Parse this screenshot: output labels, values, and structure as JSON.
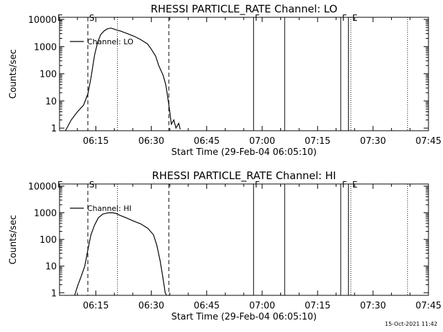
{
  "chart_data": [
    {
      "type": "line",
      "title": "RHESSI PARTICLE_RATE Channel: LO",
      "ylabel": "Counts/sec",
      "xlabel": "Start Time (29-Feb-04 06:05:10)",
      "y_scale": "log",
      "ylim": [
        0.8,
        12000
      ],
      "xlim": [
        "06:05:10",
        "07:45:00"
      ],
      "y_ticks": [
        "1",
        "10",
        "100",
        "1000",
        "10000"
      ],
      "x_ticks": [
        "06:15",
        "06:30",
        "06:45",
        "07:00",
        "07:15",
        "07:30",
        "07:45"
      ],
      "legend": {
        "placement": "top-left",
        "entries": [
          "Channel: LO"
        ]
      },
      "series": [
        {
          "name": "Channel: LO",
          "x": [
            "06:06:45",
            "06:08:20",
            "06:10:00",
            "06:11:40",
            "06:12:50",
            "06:13:40",
            "06:14:40",
            "06:15:30",
            "06:16:20",
            "06:17:15",
            "06:18:05",
            "06:19:05",
            "06:20:25",
            "06:21:45",
            "06:23:30",
            "06:25:20",
            "06:27:10",
            "06:29:00",
            "06:30:00",
            "06:31:10",
            "06:32:00",
            "06:33:10",
            "06:33:55",
            "06:34:35",
            "06:35:00",
            "06:35:25",
            "06:36:05",
            "06:36:40",
            "06:37:25",
            "06:37:50"
          ],
          "y": [
            0.8,
            2,
            4,
            7,
            18,
            70,
            500,
            1500,
            2800,
            3800,
            4500,
            4800,
            4200,
            3700,
            3000,
            2400,
            1800,
            1250,
            800,
            450,
            200,
            90,
            40,
            10,
            4,
            1.4,
            2,
            1,
            1.5,
            0.9
          ]
        }
      ],
      "markers": [
        {
          "type": "dashed",
          "time": "06:12:50",
          "label": "S"
        },
        {
          "type": "dotted",
          "time": "06:20:50",
          "label": ""
        },
        {
          "type": "dashed",
          "time": "06:34:45",
          "label": ""
        },
        {
          "type": "solid",
          "time": "06:57:40",
          "label": "F"
        },
        {
          "type": "solid",
          "time": "07:06:05",
          "label": ""
        },
        {
          "type": "solid",
          "time": "07:21:15",
          "label": "F"
        },
        {
          "type": "solid",
          "time": "07:23:20",
          "label": ""
        },
        {
          "type": "dotted",
          "time": "07:24:00",
          "label": "E"
        },
        {
          "type": "dotted",
          "time": "07:39:20",
          "label": ""
        }
      ],
      "edge_label": "E"
    },
    {
      "type": "line",
      "title": "RHESSI PARTICLE_RATE Channel: HI",
      "ylabel": "Counts/sec",
      "xlabel": "Start Time (29-Feb-04 06:05:10)",
      "y_scale": "log",
      "ylim": [
        0.8,
        12000
      ],
      "xlim": [
        "06:05:10",
        "07:45:00"
      ],
      "y_ticks": [
        "1",
        "10",
        "100",
        "1000",
        "10000"
      ],
      "x_ticks": [
        "06:15",
        "06:30",
        "06:45",
        "07:00",
        "07:15",
        "07:30",
        "07:45"
      ],
      "legend": {
        "placement": "top-left",
        "entries": [
          "Channel: HI"
        ]
      },
      "series": [
        {
          "name": "Channel: HI",
          "x": [
            "06:09:15",
            "06:10:10",
            "06:11:00",
            "06:12:00",
            "06:12:50",
            "06:13:40",
            "06:14:40",
            "06:15:40",
            "06:16:55",
            "06:18:20",
            "06:19:35",
            "06:20:25",
            "06:21:30",
            "06:23:10",
            "06:25:00",
            "06:27:10",
            "06:29:05",
            "06:30:35",
            "06:31:30",
            "06:32:25",
            "06:33:15",
            "06:33:45",
            "06:34:10"
          ],
          "y": [
            0.8,
            2,
            4,
            10,
            40,
            150,
            350,
            650,
            900,
            1000,
            1000,
            950,
            800,
            650,
            500,
            380,
            260,
            150,
            60,
            15,
            3,
            1,
            0.8
          ]
        }
      ],
      "markers": [
        {
          "type": "dashed",
          "time": "06:12:50",
          "label": "S"
        },
        {
          "type": "dotted",
          "time": "06:20:50",
          "label": ""
        },
        {
          "type": "dashed",
          "time": "06:34:45",
          "label": ""
        },
        {
          "type": "solid",
          "time": "06:57:40",
          "label": "F"
        },
        {
          "type": "solid",
          "time": "07:06:05",
          "label": ""
        },
        {
          "type": "solid",
          "time": "07:21:15",
          "label": "F"
        },
        {
          "type": "solid",
          "time": "07:23:20",
          "label": ""
        },
        {
          "type": "dotted",
          "time": "07:24:00",
          "label": "E"
        },
        {
          "type": "dotted",
          "time": "07:39:20",
          "label": ""
        }
      ],
      "edge_label": "E"
    }
  ],
  "footer": {
    "timestamp": "15-Oct-2021 11:42"
  }
}
